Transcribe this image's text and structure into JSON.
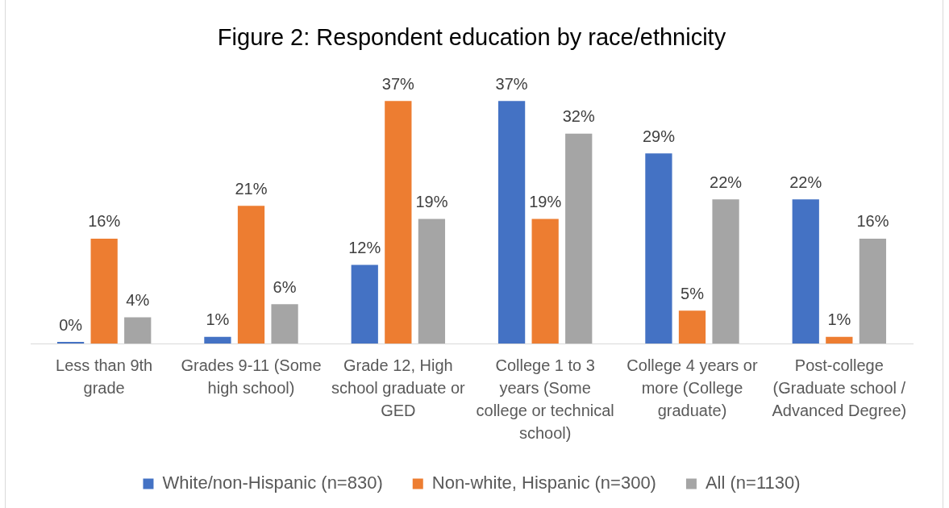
{
  "chart_data": {
    "type": "bar",
    "title": "Figure 2: Respondent education by race/ethnicity",
    "categories": [
      "Less than 9th grade",
      "Grades 9-11 (Some high school)",
      "Grade 12, High school graduate or GED",
      "College 1 to 3 years (Some college or technical school)",
      "College 4 years or more (College graduate)",
      "Post-college (Graduate school / Advanced Degree)"
    ],
    "series": [
      {
        "name": "White/non-Hispanic (n=830)",
        "color": "#4472c4",
        "values": [
          0,
          1,
          12,
          37,
          29,
          22
        ],
        "value_labels": [
          "0%",
          "1%",
          "12%",
          "37%",
          "29%",
          "22%"
        ]
      },
      {
        "name": "Non-white, Hispanic (n=300)",
        "color": "#ed7d31",
        "values": [
          16,
          21,
          37,
          19,
          5,
          1
        ],
        "value_labels": [
          "16%",
          "21%",
          "37%",
          "19%",
          "5%",
          "1%"
        ]
      },
      {
        "name": "All (n=1130)",
        "color": "#a5a5a5",
        "values": [
          4,
          6,
          19,
          32,
          22,
          16
        ],
        "value_labels": [
          "4%",
          "6%",
          "19%",
          "32%",
          "22%",
          "16%"
        ]
      }
    ],
    "legend": "bottom",
    "tick_labels": "x"
  }
}
